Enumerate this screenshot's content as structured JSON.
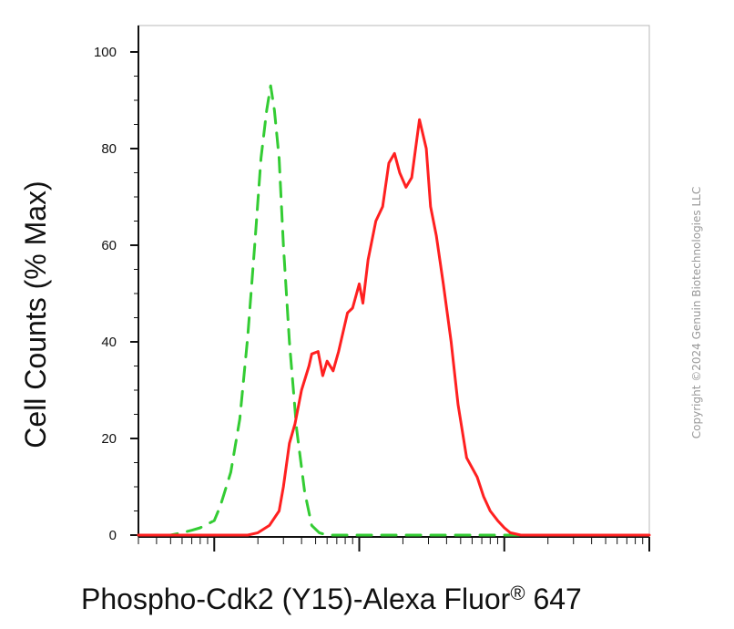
{
  "chart_data": {
    "type": "line",
    "title": "",
    "xlabel": "Phospho-Cdk2 (Y15)-Alexa Fluor",
    "xlabel_sup": "®",
    "xlabel_suffix": " 647",
    "ylabel": "Cell Counts (% Max)",
    "x_scale": "log",
    "xlim": [
      300,
      1000000
    ],
    "ylim": [
      0,
      100
    ],
    "y_ticks": [
      0,
      20,
      40,
      60,
      80,
      100
    ],
    "y_tick_labels": [
      "0",
      "20",
      "40",
      "60",
      "80",
      "100"
    ],
    "x_major_ticks": [
      1000,
      10000,
      100000
    ],
    "x_tick_labels": [],
    "grid": false,
    "legend": "none",
    "series": [
      {
        "color": "#33cc33",
        "style": "dashed",
        "x": [
          300,
          500,
          600,
          700,
          800,
          1000,
          1100,
          1300,
          1500,
          1700,
          1900,
          2100,
          2300,
          2450,
          2600,
          2800,
          3000,
          3300,
          3700,
          4200,
          4700,
          5300,
          6000,
          7000,
          10000,
          100000,
          1000000
        ],
        "y": [
          0,
          0,
          0.5,
          1,
          1.5,
          3,
          6,
          13,
          24,
          41,
          60,
          78,
          88,
          93,
          88,
          78,
          60,
          40,
          22,
          9,
          2,
          0.5,
          0,
          0,
          0,
          0,
          0
        ]
      },
      {
        "color": "#ff2020",
        "style": "solid",
        "x": [
          300,
          1000,
          1700,
          2000,
          2400,
          2800,
          3000,
          3300,
          3600,
          4000,
          4500,
          4700,
          5200,
          5600,
          6000,
          6600,
          7200,
          8300,
          9000,
          10000,
          10600,
          11500,
          13000,
          14500,
          16000,
          17500,
          19000,
          21000,
          23000,
          26000,
          29000,
          31000,
          34000,
          38000,
          43000,
          48000,
          55000,
          65000,
          72000,
          80000,
          90000,
          100000,
          110000,
          130000,
          170000,
          300000,
          1000000
        ],
        "y": [
          0,
          0,
          0,
          0.5,
          2,
          5,
          10,
          19,
          23,
          30,
          35,
          37.5,
          38,
          33,
          36,
          34,
          38,
          46,
          47,
          52,
          48,
          57,
          65,
          68,
          77,
          79,
          75,
          72,
          74,
          86,
          80,
          68,
          62,
          52,
          40,
          27,
          16,
          12,
          8,
          5,
          3,
          1.5,
          0.5,
          0,
          0,
          0,
          0
        ]
      }
    ]
  },
  "copyright": "Copyright ©2024 Genuin Biotechnologies LLC"
}
